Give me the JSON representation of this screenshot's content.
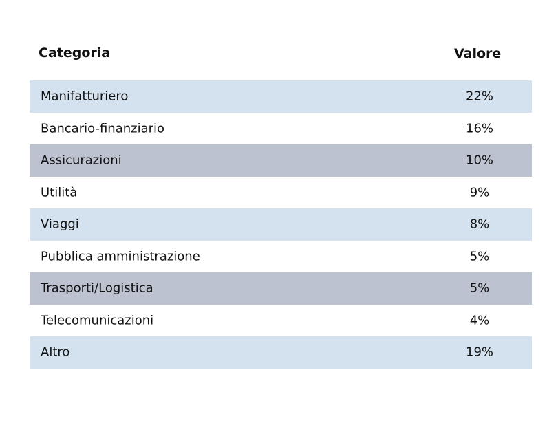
{
  "table": {
    "headers": {
      "category": "Categoria",
      "value": "Valore"
    },
    "row_colors": [
      "#d4e2ef",
      "#ffffff",
      "#bcc2cf",
      "#ffffff",
      "#d4e2ef",
      "#ffffff",
      "#bcc2cf",
      "#ffffff",
      "#d4e2ef"
    ],
    "rows": [
      {
        "category": "Manifatturiero",
        "value": "22%"
      },
      {
        "category": "Bancario-finanziario",
        "value": "16%"
      },
      {
        "category": "Assicurazioni",
        "value": "10%"
      },
      {
        "category": "Utilità",
        "value": "9%"
      },
      {
        "category": "Viaggi",
        "value": "8%"
      },
      {
        "category": "Pubblica amministrazione",
        "value": "5%"
      },
      {
        "category": "Trasporti/Logistica",
        "value": "5%"
      },
      {
        "category": "Telecomunicazioni",
        "value": "4%"
      },
      {
        "category": "Altro",
        "value": "19%"
      }
    ]
  },
  "chart_data": {
    "type": "table",
    "columns": [
      "Categoria",
      "Valore"
    ],
    "categories": [
      "Manifatturiero",
      "Bancario-finanziario",
      "Assicurazioni",
      "Utilità",
      "Viaggi",
      "Pubblica amministrazione",
      "Trasporti/Logistica",
      "Telecomunicazioni",
      "Altro"
    ],
    "values": [
      22,
      16,
      10,
      9,
      8,
      5,
      5,
      4,
      19
    ],
    "unit": "%"
  }
}
